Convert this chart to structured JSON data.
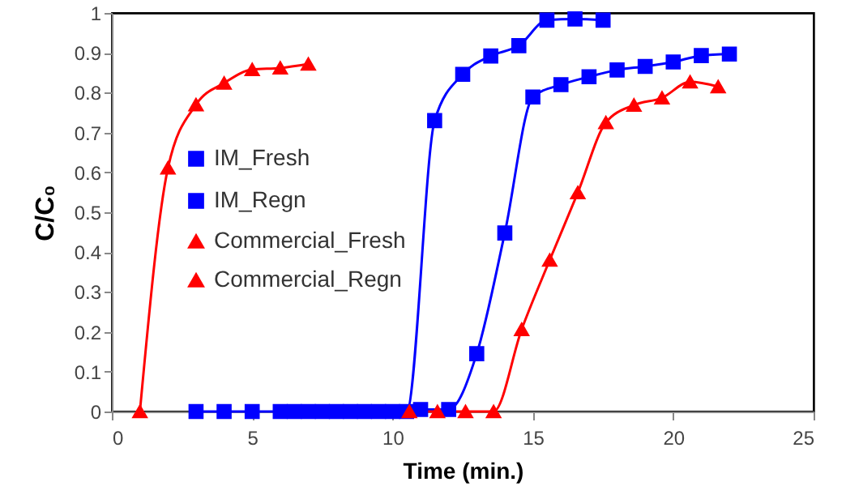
{
  "chart_data": {
    "type": "line",
    "xlabel": "Time (min.)",
    "ylabel": "C/C₀",
    "xlim": [
      0,
      25
    ],
    "xticks": [
      0,
      5,
      10,
      15,
      20,
      25
    ],
    "ylim": [
      0,
      1
    ],
    "yticks": [
      0,
      0.1,
      0.2,
      0.3,
      0.4,
      0.5,
      0.6,
      0.7,
      0.8,
      0.9,
      1
    ],
    "grid": false,
    "legend": "left",
    "line_style": "solid",
    "series": [
      {
        "name": "IM_Fresh",
        "color": "#0000ff",
        "marker": "square",
        "x": [
          3,
          4,
          5,
          6,
          7,
          8,
          9,
          10,
          11,
          12,
          13,
          14,
          15,
          16,
          17,
          18,
          19,
          20,
          21,
          22
        ],
        "values": [
          0,
          0,
          0,
          0,
          0,
          0,
          0,
          0,
          0.005,
          0.005,
          0.145,
          0.448,
          0.789,
          0.82,
          0.84,
          0.857,
          0.866,
          0.877,
          0.893,
          0.897
        ]
      },
      {
        "name": "IM_Regn",
        "color": "#0000ff",
        "marker": "square",
        "x": [
          6.5,
          7.5,
          8.5,
          9.5,
          10.5,
          11.5,
          12.5,
          13.5,
          14.5,
          15.5,
          16.5,
          17.5
        ],
        "values": [
          0,
          0,
          0,
          0,
          0,
          0.73,
          0.846,
          0.892,
          0.918,
          0.982,
          0.985,
          0.982
        ]
      },
      {
        "name": "Commercial_Fresh",
        "color": "#ff0000",
        "marker": "triangle",
        "x": [
          10.6,
          11.6,
          12.6,
          13.6,
          14.6,
          15.6,
          16.6,
          17.6,
          18.6,
          19.6,
          20.6,
          21.6
        ],
        "values": [
          0,
          0,
          0,
          0,
          0.206,
          0.38,
          0.549,
          0.725,
          0.769,
          0.787,
          0.827,
          0.815
        ]
      },
      {
        "name": "Commercial_Regn",
        "color": "#ff0000",
        "marker": "triangle",
        "x": [
          1,
          2,
          3,
          4,
          5,
          6,
          7
        ],
        "values": [
          0,
          0.611,
          0.77,
          0.824,
          0.858,
          0.862,
          0.872
        ]
      }
    ]
  }
}
